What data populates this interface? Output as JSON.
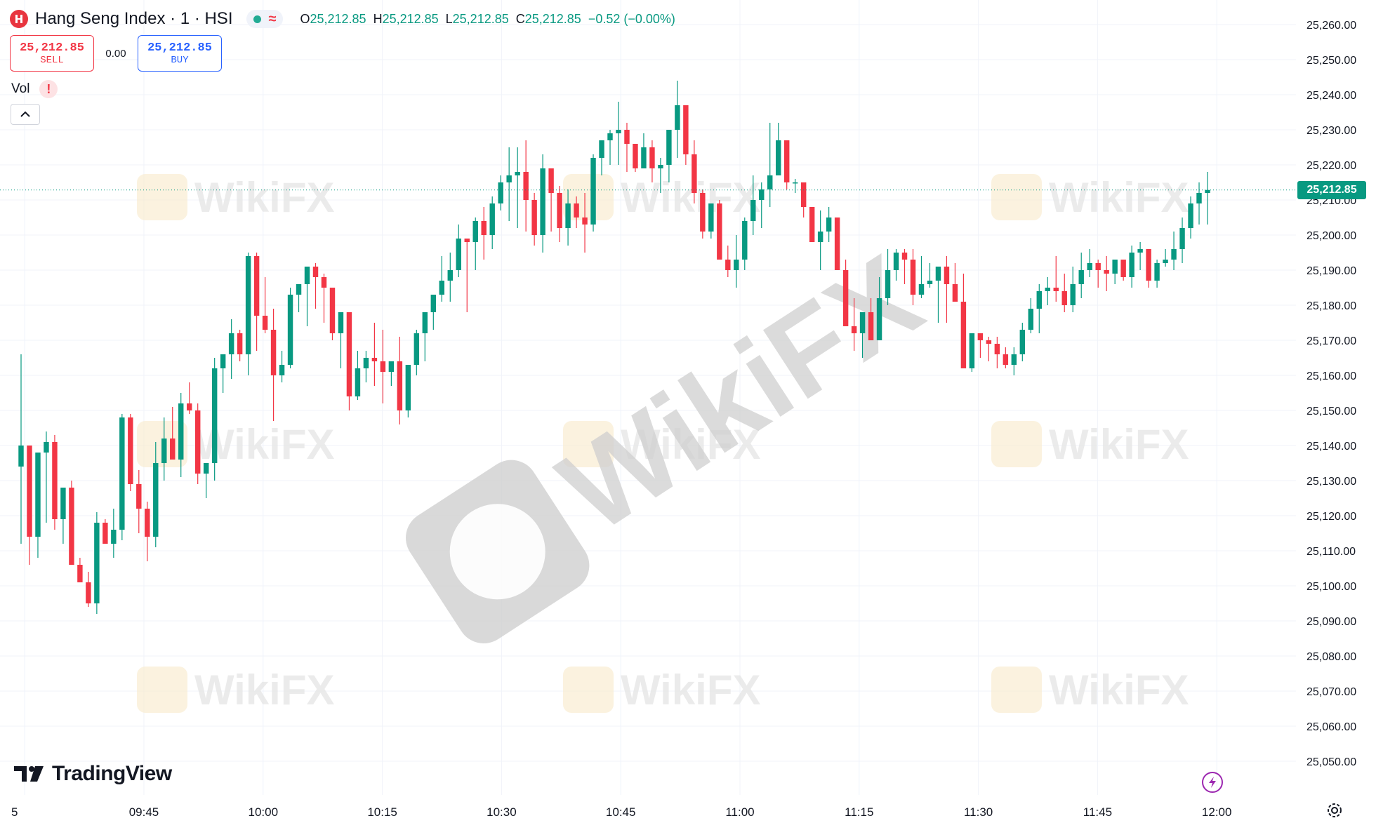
{
  "header": {
    "title": "Hang Seng Index · 1 · HSI",
    "ohlc": [
      {
        "key": "O",
        "value": "25,212.85"
      },
      {
        "key": "H",
        "value": "25,212.85"
      },
      {
        "key": "L",
        "value": "25,212.85"
      },
      {
        "key": "C",
        "value": "25,212.85"
      }
    ],
    "change": "−0.52 (−0.00%)",
    "status_glyph": "≈"
  },
  "trade": {
    "sell_price": "25,212.85",
    "sell_label": "SELL",
    "spread": "0.00",
    "buy_price": "25,212.85",
    "buy_label": "BUY"
  },
  "volume": {
    "label": "Vol",
    "warning": "!"
  },
  "brand": "TradingView",
  "watermark": "WikiFX",
  "colors": {
    "up": "#089981",
    "down": "#f23645",
    "text": "#131722",
    "grid": "#f0f3fa"
  },
  "icons": [
    "hsi-logo-icon",
    "market-status-dot-icon",
    "collapse-chevron-up-icon",
    "tradingview-logo-icon",
    "lightning-icon",
    "settings-gear-icon"
  ],
  "chart_data": {
    "type": "candlestick",
    "current_price": 25212.85,
    "current_price_label": "25,212.85",
    "y_ticks": [
      "25,260.00",
      "25,250.00",
      "25,240.00",
      "25,230.00",
      "25,220.00",
      "25,210.00",
      "25,200.00",
      "25,190.00",
      "25,180.00",
      "25,170.00",
      "25,160.00",
      "25,150.00",
      "25,140.00",
      "25,130.00",
      "25,120.00",
      "25,110.00",
      "25,100.00",
      "25,090.00",
      "25,080.00",
      "25,070.00",
      "25,060.00",
      "25,050.00"
    ],
    "y_tick_values": [
      25260,
      25250,
      25240,
      25230,
      25220,
      25210,
      25200,
      25190,
      25180,
      25170,
      25160,
      25150,
      25140,
      25130,
      25120,
      25110,
      25100,
      25090,
      25080,
      25070,
      25060,
      25050
    ],
    "y_range": [
      25048,
      25266
    ],
    "x_ticks": [
      "5",
      "09:45",
      "10:00",
      "10:15",
      "10:30",
      "10:45",
      "11:00",
      "11:15",
      "11:30",
      "11:45",
      "12:00"
    ],
    "x_tick_minutes": [
      -15,
      0,
      15,
      30,
      45,
      60,
      75,
      90,
      105,
      120,
      135
    ],
    "candles_ohlc": [
      [
        25134,
        25166,
        25112,
        25140
      ],
      [
        25140,
        25134,
        25106,
        25114
      ],
      [
        25114,
        25130,
        25108,
        25138
      ],
      [
        25138,
        25144,
        25118,
        25141
      ],
      [
        25141,
        25143,
        25116,
        25119
      ],
      [
        25119,
        25124,
        25112,
        25128
      ],
      [
        25128,
        25130,
        25113,
        25106
      ],
      [
        25106,
        25108,
        25101,
        25101
      ],
      [
        25101,
        25104,
        25094,
        25095
      ],
      [
        25095,
        25121,
        25092,
        25118
      ],
      [
        25118,
        25119,
        25115,
        25112
      ],
      [
        25112,
        25122,
        25108,
        25116
      ],
      [
        25116,
        25149,
        25113,
        25148
      ],
      [
        25148,
        25149,
        25127,
        25129
      ],
      [
        25129,
        25133,
        25115,
        25122
      ],
      [
        25122,
        25124,
        25107,
        25114
      ],
      [
        25114,
        25141,
        25111,
        25135
      ],
      [
        25135,
        25148,
        25130,
        25142
      ],
      [
        25142,
        25151,
        25136,
        25136
      ],
      [
        25136,
        25155,
        25131,
        25152
      ],
      [
        25152,
        25158,
        25149,
        25150
      ],
      [
        25150,
        25152,
        25129,
        25132
      ],
      [
        25132,
        25133,
        25125,
        25135
      ],
      [
        25135,
        25165,
        25130,
        25162
      ],
      [
        25162,
        25166,
        25155,
        25166
      ],
      [
        25166,
        25176,
        25159,
        25172
      ],
      [
        25172,
        25173,
        25164,
        25166
      ],
      [
        25166,
        25195,
        25160,
        25194
      ],
      [
        25194,
        25195,
        25167,
        25177
      ],
      [
        25177,
        25188,
        25172,
        25173
      ],
      [
        25173,
        25179,
        25147,
        25160
      ],
      [
        25160,
        25167,
        25158,
        25163
      ],
      [
        25163,
        25185,
        25162,
        25183
      ],
      [
        25183,
        25185,
        25178,
        25186
      ],
      [
        25186,
        25191,
        25174,
        25191
      ],
      [
        25191,
        25192,
        25179,
        25188
      ],
      [
        25188,
        25189,
        25175,
        25185
      ],
      [
        25185,
        25184,
        25170,
        25172
      ],
      [
        25172,
        25178,
        25162,
        25178
      ],
      [
        25178,
        25177,
        25150,
        25154
      ],
      [
        25154,
        25167,
        25153,
        25162
      ],
      [
        25162,
        25167,
        25158,
        25165
      ],
      [
        25165,
        25175,
        25157,
        25164
      ],
      [
        25164,
        25173,
        25152,
        25161
      ],
      [
        25161,
        25164,
        25157,
        25164
      ],
      [
        25164,
        25171,
        25146,
        25150
      ],
      [
        25150,
        25158,
        25148,
        25163
      ],
      [
        25163,
        25173,
        25160,
        25172
      ],
      [
        25172,
        25176,
        25164,
        25178
      ],
      [
        25178,
        25183,
        25173,
        25183
      ],
      [
        25183,
        25194,
        25181,
        25187
      ],
      [
        25187,
        25195,
        25181,
        25190
      ],
      [
        25190,
        25203,
        25188,
        25199
      ],
      [
        25199,
        25198,
        25178,
        25198
      ],
      [
        25198,
        25205,
        25190,
        25204
      ],
      [
        25204,
        25208,
        25193,
        25200
      ],
      [
        25200,
        25211,
        25196,
        25209
      ],
      [
        25209,
        25217,
        25207,
        25215
      ],
      [
        25215,
        25225,
        25204,
        25217
      ],
      [
        25217,
        25225,
        25202,
        25218
      ],
      [
        25218,
        25227,
        25201,
        25210
      ],
      [
        25210,
        25212,
        25197,
        25200
      ],
      [
        25200,
        25223,
        25195,
        25219
      ],
      [
        25219,
        25215,
        25201,
        25212
      ],
      [
        25212,
        25214,
        25198,
        25202
      ],
      [
        25202,
        25213,
        25197,
        25209
      ],
      [
        25209,
        25211,
        25202,
        25205
      ],
      [
        25205,
        25212,
        25195,
        25203
      ],
      [
        25203,
        25223,
        25201,
        25222
      ],
      [
        25222,
        25227,
        25217,
        25227
      ],
      [
        25227,
        25230,
        25220,
        25229
      ],
      [
        25229,
        25238,
        25220,
        25230
      ],
      [
        25230,
        25232,
        25218,
        25226
      ],
      [
        25226,
        25226,
        25218,
        25219
      ],
      [
        25219,
        25229,
        25221,
        25225
      ],
      [
        25225,
        25227,
        25215,
        25219
      ],
      [
        25219,
        25222,
        25212,
        25220
      ],
      [
        25220,
        25229,
        25215,
        25230
      ],
      [
        25230,
        25244,
        25222,
        25237
      ],
      [
        25237,
        25237,
        25220,
        25223
      ],
      [
        25223,
        25227,
        25209,
        25212
      ],
      [
        25212,
        25213,
        25199,
        25201
      ],
      [
        25201,
        25209,
        25199,
        25209
      ],
      [
        25209,
        25210,
        25193,
        25193
      ],
      [
        25193,
        25197,
        25188,
        25190
      ],
      [
        25190,
        25200,
        25185,
        25193
      ],
      [
        25193,
        25205,
        25190,
        25204
      ],
      [
        25204,
        25217,
        25200,
        25210
      ],
      [
        25210,
        25215,
        25202,
        25213
      ],
      [
        25213,
        25232,
        25208,
        25217
      ],
      [
        25217,
        25232,
        25217,
        25227
      ],
      [
        25227,
        25219,
        25213,
        25215
      ],
      [
        25215,
        25216,
        25212,
        25215
      ],
      [
        25215,
        25211,
        25205,
        25208
      ],
      [
        25208,
        25208,
        25200,
        25198
      ],
      [
        25198,
        25207,
        25190,
        25201
      ],
      [
        25201,
        25208,
        25198,
        25205
      ],
      [
        25205,
        25204,
        25191,
        25190
      ],
      [
        25190,
        25193,
        25174,
        25174
      ],
      [
        25174,
        25182,
        25167,
        25172
      ],
      [
        25172,
        25178,
        25165,
        25178
      ],
      [
        25178,
        25182,
        25170,
        25170
      ],
      [
        25170,
        25188,
        25173,
        25182
      ],
      [
        25182,
        25196,
        25180,
        25190
      ],
      [
        25190,
        25196,
        25187,
        25195
      ],
      [
        25195,
        25196,
        25186,
        25193
      ],
      [
        25193,
        25196,
        25180,
        25183
      ],
      [
        25183,
        25194,
        25182,
        25186
      ],
      [
        25186,
        25192,
        25185,
        25187
      ],
      [
        25187,
        25190,
        25175,
        25191
      ],
      [
        25191,
        25194,
        25175,
        25186
      ],
      [
        25186,
        25192,
        25181,
        25181
      ],
      [
        25181,
        25189,
        25163,
        25162
      ],
      [
        25162,
        25172,
        25161,
        25172
      ],
      [
        25172,
        25172,
        25165,
        25170
      ],
      [
        25170,
        25171,
        25164,
        25169
      ],
      [
        25169,
        25171,
        25162,
        25166
      ],
      [
        25166,
        25168,
        25162,
        25163
      ],
      [
        25163,
        25168,
        25160,
        25166
      ],
      [
        25166,
        25175,
        25164,
        25173
      ],
      [
        25173,
        25182,
        25172,
        25179
      ],
      [
        25179,
        25186,
        25172,
        25184
      ],
      [
        25184,
        25188,
        25180,
        25185
      ],
      [
        25185,
        25194,
        25181,
        25184
      ],
      [
        25184,
        25189,
        25178,
        25180
      ],
      [
        25180,
        25191,
        25178,
        25186
      ],
      [
        25186,
        25195,
        25182,
        25190
      ],
      [
        25190,
        25196,
        25188,
        25192
      ],
      [
        25192,
        25193,
        25185,
        25190
      ],
      [
        25190,
        25194,
        25184,
        25189
      ],
      [
        25189,
        25193,
        25186,
        25193
      ],
      [
        25193,
        25190,
        25187,
        25188
      ],
      [
        25188,
        25197,
        25185,
        25195
      ],
      [
        25195,
        25198,
        25190,
        25196
      ],
      [
        25196,
        25193,
        25185,
        25187
      ],
      [
        25187,
        25193,
        25185,
        25192
      ],
      [
        25192,
        25196,
        25191,
        25193
      ],
      [
        25193,
        25201,
        25190,
        25196
      ],
      [
        25196,
        25205,
        25192,
        25202
      ],
      [
        25202,
        25211,
        25199,
        25209
      ],
      [
        25209,
        25215,
        25203,
        25212
      ],
      [
        25212,
        25218,
        25203,
        25212.85
      ]
    ]
  }
}
